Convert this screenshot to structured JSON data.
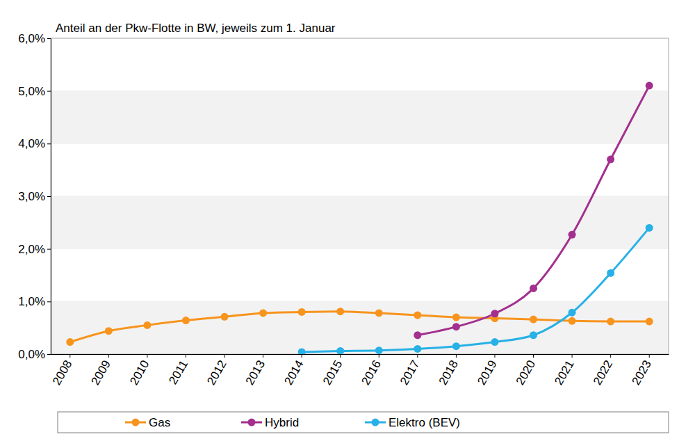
{
  "chart_data": {
    "type": "line",
    "title": "Anteil an der Pkw-Flotte in BW, jeweils zum 1. Januar",
    "categories": [
      "2008",
      "2009",
      "2010",
      "2011",
      "2012",
      "2013",
      "2014",
      "2015",
      "2016",
      "2017",
      "2018",
      "2019",
      "2020",
      "2021",
      "2022",
      "2023"
    ],
    "series": [
      {
        "name": "Gas",
        "color": "#f7941d",
        "marker": "circle",
        "values": [
          0.23,
          0.44,
          0.55,
          0.64,
          0.71,
          0.78,
          0.8,
          0.81,
          0.78,
          0.74,
          0.7,
          0.68,
          0.66,
          0.63,
          0.62,
          0.62
        ]
      },
      {
        "name": "Hybrid",
        "color": "#a3308e",
        "marker": "circle",
        "values": [
          null,
          null,
          null,
          null,
          null,
          null,
          null,
          null,
          null,
          0.36,
          0.52,
          0.77,
          1.25,
          2.27,
          3.7,
          5.1
        ]
      },
      {
        "name": "Elektro (BEV)",
        "color": "#27b1e6",
        "marker": "circle",
        "values": [
          null,
          null,
          null,
          null,
          null,
          null,
          0.04,
          0.06,
          0.07,
          0.1,
          0.15,
          0.23,
          0.36,
          0.79,
          1.54,
          2.4
        ]
      }
    ],
    "ylim": [
      0,
      6
    ],
    "yticks": [
      {
        "value": 0,
        "label": "0,0%"
      },
      {
        "value": 1,
        "label": "1,0%"
      },
      {
        "value": 2,
        "label": "2,0%"
      },
      {
        "value": 3,
        "label": "3,0%"
      },
      {
        "value": 4,
        "label": "4,0%"
      },
      {
        "value": 5,
        "label": "5,0%"
      },
      {
        "value": 6,
        "label": "6,0%"
      }
    ],
    "grid": true,
    "legend": "bottom"
  }
}
